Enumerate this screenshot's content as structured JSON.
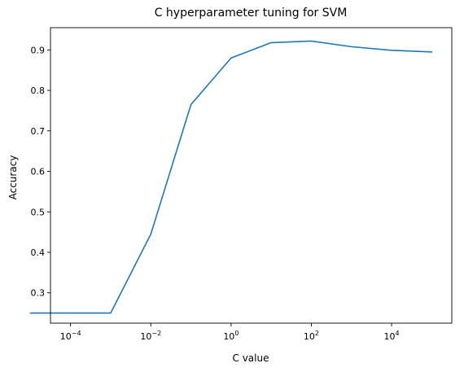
{
  "chart_data": {
    "type": "line",
    "title": "C hyperparameter tuning for SVM",
    "xlabel": "C value",
    "ylabel": "Accuracy",
    "xscale": "log",
    "xlim": [
      3.16e-05,
      316000
    ],
    "ylim": [
      0.225,
      0.955
    ],
    "grid": false,
    "x_ticks": [
      {
        "base": "10",
        "exp": "−4",
        "value": 0.0001
      },
      {
        "base": "10",
        "exp": "−2",
        "value": 0.01
      },
      {
        "base": "10",
        "exp": "0",
        "value": 1
      },
      {
        "base": "10",
        "exp": "2",
        "value": 100
      },
      {
        "base": "10",
        "exp": "4",
        "value": 10000
      }
    ],
    "y_ticks": [
      {
        "label": "0.3",
        "value": 0.3
      },
      {
        "label": "0.4",
        "value": 0.4
      },
      {
        "label": "0.5",
        "value": 0.5
      },
      {
        "label": "0.6",
        "value": 0.6
      },
      {
        "label": "0.7",
        "value": 0.7
      },
      {
        "label": "0.8",
        "value": 0.8
      },
      {
        "label": "0.9",
        "value": 0.9
      }
    ],
    "series": [
      {
        "color": "#1f77b4",
        "x": [
          1e-05,
          0.0001,
          0.001,
          0.01,
          0.1,
          1,
          10,
          100,
          1000,
          10000,
          100000
        ],
        "y": [
          0.25,
          0.25,
          0.25,
          0.445,
          0.765,
          0.88,
          0.918,
          0.922,
          0.908,
          0.899,
          0.895
        ]
      }
    ]
  }
}
